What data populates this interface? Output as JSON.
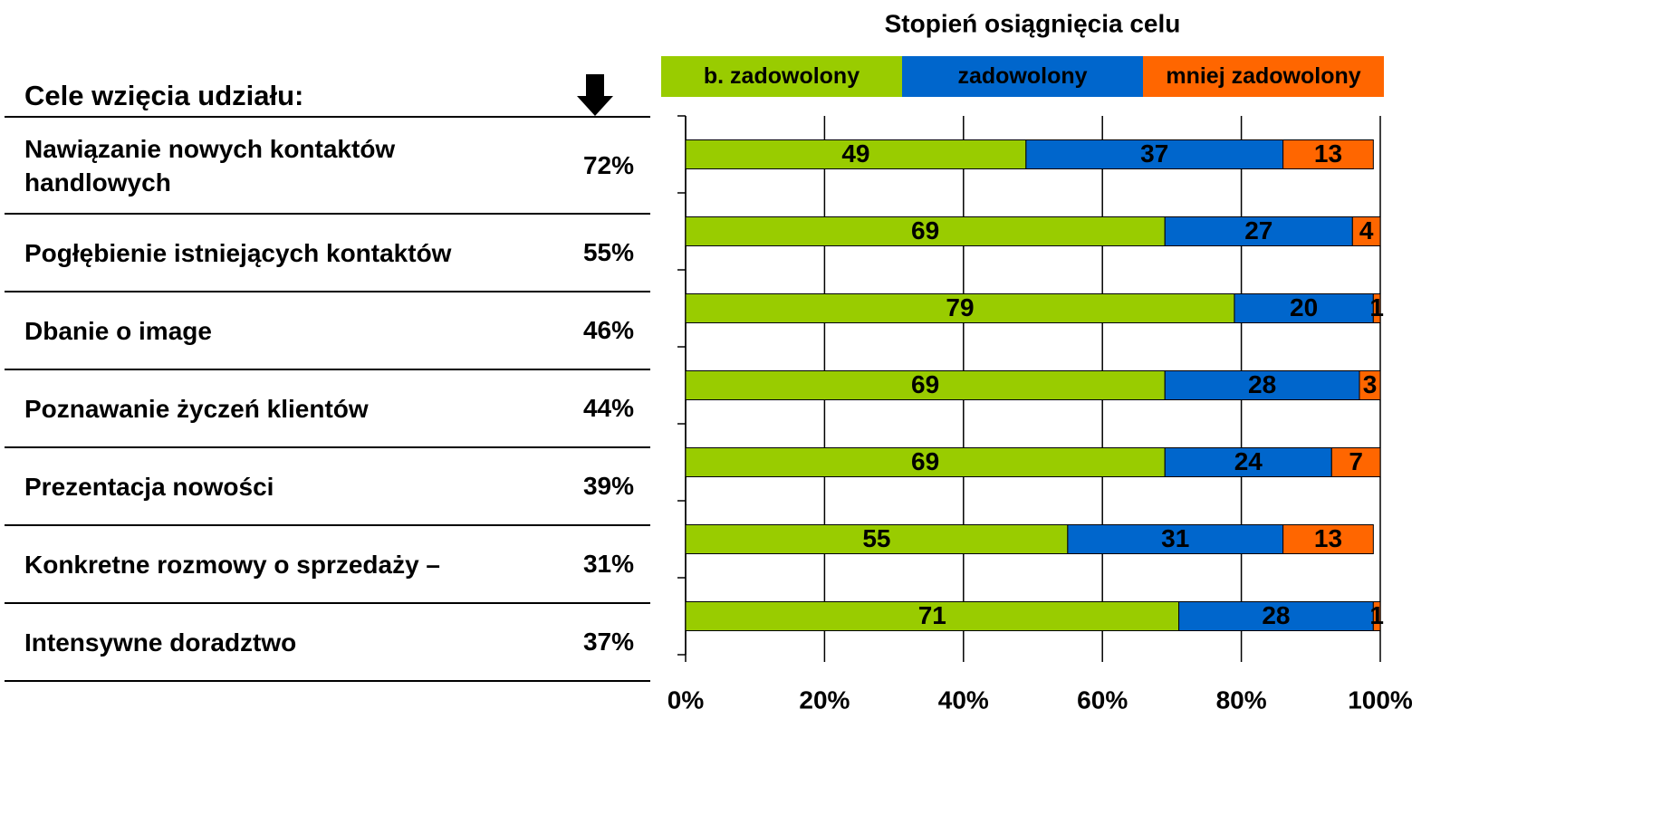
{
  "goals": {
    "title": "Cele wzięcia udziału:",
    "rows": [
      {
        "label": "Nawiązanie nowych kontaktów handlowych",
        "share": "72%"
      },
      {
        "label": "Pogłębienie istniejących kontaktów",
        "share": "55%"
      },
      {
        "label": "Dbanie o image",
        "share": "46%"
      },
      {
        "label": "Poznawanie życzeń klientów",
        "share": "44%"
      },
      {
        "label": "Prezentacja nowości",
        "share": "39%"
      },
      {
        "label": "Konkretne rozmowy o sprzedaży –",
        "share": "31%"
      },
      {
        "label": "Intensywne doradztwo",
        "share": "37%"
      }
    ]
  },
  "chart_data": {
    "type": "stacked_barh",
    "title": "Stopień osiągnięcia celu",
    "categories": [
      null,
      null,
      null,
      null,
      null,
      null,
      null
    ],
    "series": [
      {
        "name": "b. zadowolony",
        "color": "#99cc00",
        "values": [
          49,
          69,
          79,
          69,
          69,
          55,
          71
        ]
      },
      {
        "name": "zadowolony",
        "color": "#0066cc",
        "values": [
          37,
          27,
          20,
          28,
          24,
          31,
          28
        ]
      },
      {
        "name": "mniej zadowolony",
        "color": "#ff6600",
        "values": [
          13,
          4,
          1,
          3,
          7,
          13,
          1
        ]
      }
    ],
    "xlim": [
      0,
      100
    ],
    "xticks": [
      {
        "value": 0,
        "label": "0%"
      },
      {
        "value": 20,
        "label": "20%"
      },
      {
        "value": 40,
        "label": "40%"
      },
      {
        "value": 60,
        "label": "60%"
      },
      {
        "value": 80,
        "label": "80%"
      },
      {
        "value": 100,
        "label": "100%"
      }
    ],
    "grid": true,
    "legend": "top"
  }
}
